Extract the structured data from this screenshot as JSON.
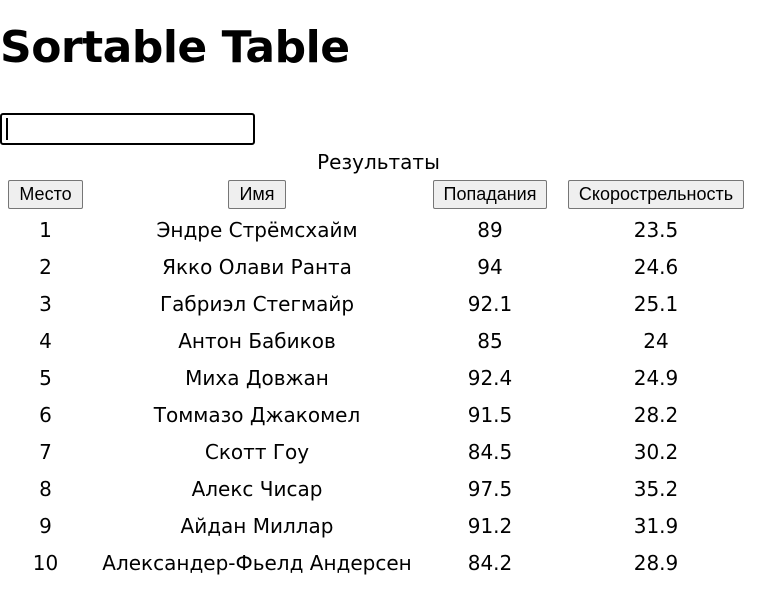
{
  "page": {
    "title": "Sortable Table"
  },
  "search": {
    "value": "",
    "placeholder": ""
  },
  "table": {
    "caption": "Результаты",
    "headers": [
      "Место",
      "Имя",
      "Попадания",
      "Скорострельность"
    ],
    "rows": [
      [
        "1",
        "Эндре Стрёмсхайм",
        "89",
        "23.5"
      ],
      [
        "2",
        "Якко Олави Ранта",
        "94",
        "24.6"
      ],
      [
        "3",
        "Габриэл Стегмайр",
        "92.1",
        "25.1"
      ],
      [
        "4",
        "Антон Бабиков",
        "85",
        "24"
      ],
      [
        "5",
        "Миха Довжан",
        "92.4",
        "24.9"
      ],
      [
        "6",
        "Томмазо Джакомел",
        "91.5",
        "28.2"
      ],
      [
        "7",
        "Скотт Гоу",
        "84.5",
        "30.2"
      ],
      [
        "8",
        "Алекс Чисар",
        "97.5",
        "35.2"
      ],
      [
        "9",
        "Айдан Миллар",
        "91.2",
        "31.9"
      ],
      [
        "10",
        "Александер-Фьелд Андерсен",
        "84.2",
        "28.9"
      ]
    ]
  }
}
